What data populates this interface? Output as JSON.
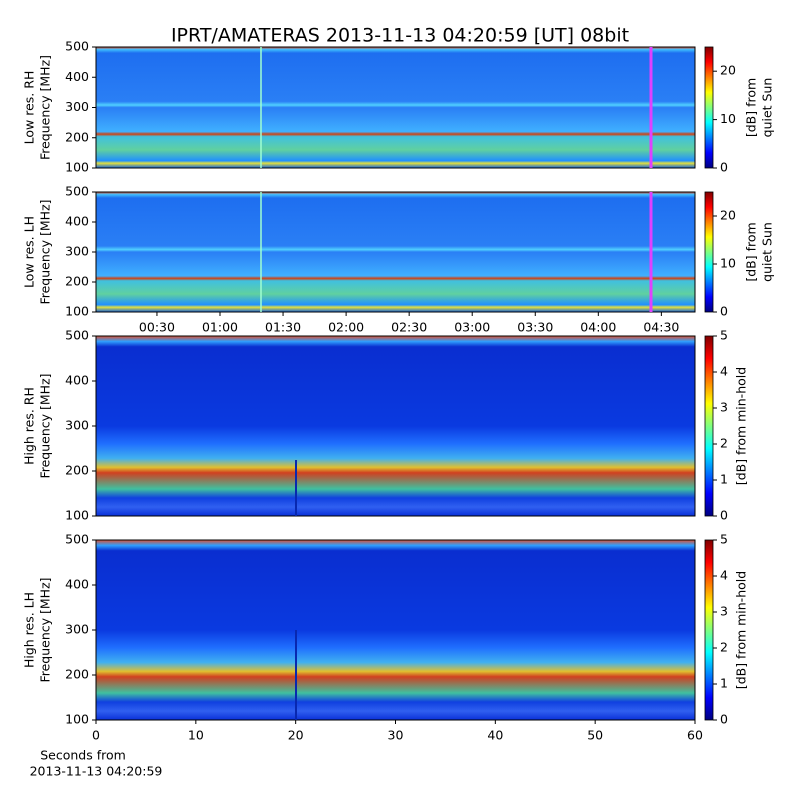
{
  "title": "IPRT/AMATERAS 2013-11-13 04:20:59 [UT]   08bit",
  "chart_data": [
    {
      "type": "heatmap",
      "ylabel": [
        "Low res. RH",
        "Frequency [MHz]"
      ],
      "ylim": [
        100,
        500
      ],
      "yticks": [
        100,
        200,
        300,
        400,
        500
      ],
      "xlim": [
        1,
        286
      ],
      "colorbar": {
        "lim": [
          0,
          25
        ],
        "ticks": [
          0,
          10,
          20
        ],
        "label": [
          "[dB] from",
          "quiet Sun"
        ]
      }
    },
    {
      "type": "heatmap",
      "ylabel": [
        "Low res. LH",
        "Frequency [MHz]"
      ],
      "ylim": [
        100,
        500
      ],
      "yticks": [
        100,
        200,
        300,
        400,
        500
      ],
      "xlim": [
        1,
        286
      ],
      "xticks": [
        {
          "value": 30,
          "label": "00:30"
        },
        {
          "value": 60,
          "label": "01:00"
        },
        {
          "value": 90,
          "label": "01:30"
        },
        {
          "value": 120,
          "label": "02:00"
        },
        {
          "value": 150,
          "label": "02:30"
        },
        {
          "value": 180,
          "label": "03:00"
        },
        {
          "value": 210,
          "label": "03:30"
        },
        {
          "value": 240,
          "label": "04:00"
        },
        {
          "value": 270,
          "label": "04:30"
        }
      ],
      "colorbar": {
        "lim": [
          0,
          25
        ],
        "ticks": [
          0,
          10,
          20
        ],
        "label": [
          "[dB] from",
          "quiet Sun"
        ]
      }
    },
    {
      "type": "heatmap",
      "ylabel": [
        "High res. RH",
        "Frequency [MHz]"
      ],
      "ylim": [
        100,
        500
      ],
      "yticks": [
        100,
        200,
        300,
        400,
        500
      ],
      "xlim": [
        0,
        60
      ],
      "colorbar": {
        "lim": [
          0,
          5
        ],
        "ticks": [
          0,
          1,
          2,
          3,
          4,
          5
        ],
        "label": [
          "[dB] from min-hold"
        ]
      }
    },
    {
      "type": "heatmap",
      "ylabel": [
        "High res. LH",
        "Frequency [MHz]"
      ],
      "ylim": [
        100,
        500
      ],
      "yticks": [
        100,
        200,
        300,
        400,
        500
      ],
      "xlim": [
        0,
        60
      ],
      "xticks": [
        0,
        10,
        20,
        30,
        40,
        50,
        60
      ],
      "xlabel": [
        "Seconds from",
        "2013-11-13 04:20:59"
      ],
      "colorbar": {
        "lim": [
          0,
          5
        ],
        "ticks": [
          0,
          1,
          2,
          3,
          4,
          5
        ],
        "label": [
          "[dB] from min-hold"
        ]
      }
    }
  ]
}
